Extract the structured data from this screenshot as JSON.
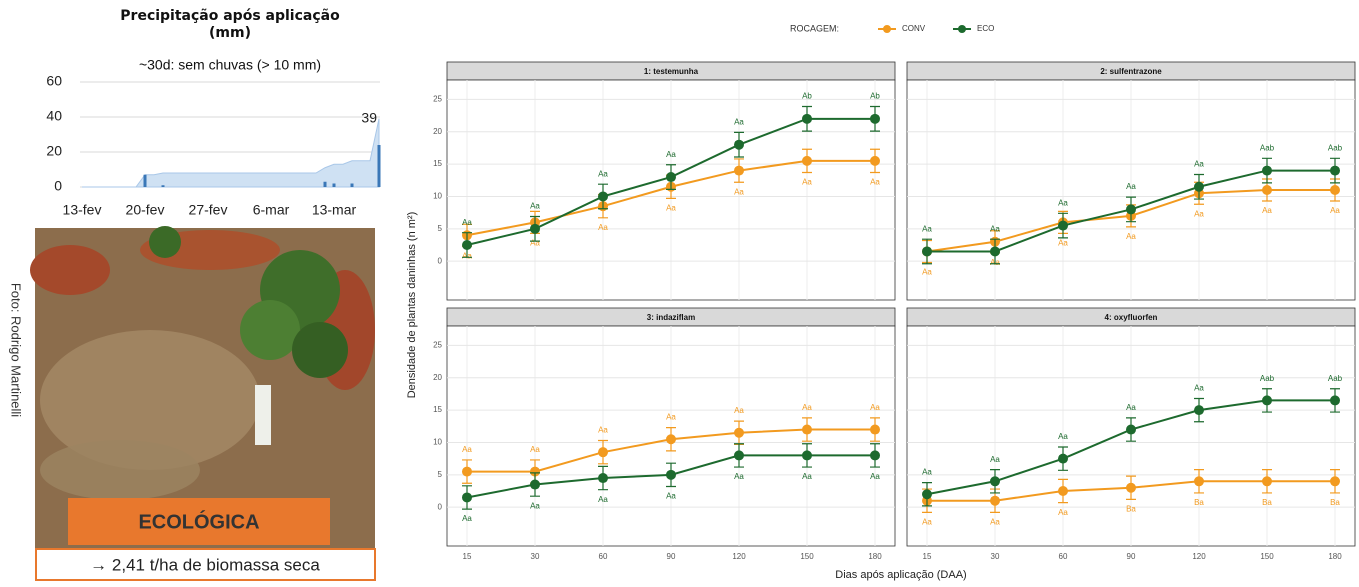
{
  "chart_data": [
    {
      "type": "area-bar",
      "title": "Precipitação após aplicação (mm)",
      "subtitle": "~30d: sem chuvas (> 10 mm)",
      "categories": [
        "13-fev",
        null,
        null,
        null,
        null,
        null,
        null,
        "20-fev",
        null,
        null,
        null,
        null,
        null,
        null,
        "27-fev",
        null,
        null,
        null,
        null,
        null,
        null,
        "6-mar",
        null,
        null,
        null,
        null,
        null,
        null,
        "13-mar",
        null,
        null,
        null,
        null,
        null
      ],
      "series": [
        {
          "kind": "area",
          "color": "#cfe1f3",
          "values": [
            0,
            0,
            0,
            0,
            0,
            0,
            0,
            7,
            7,
            8,
            8,
            8,
            8,
            8,
            8,
            8,
            8,
            8,
            8,
            8,
            8,
            8,
            8,
            8,
            8,
            8,
            8,
            11,
            13,
            13,
            15,
            15,
            15,
            39
          ]
        },
        {
          "kind": "bar",
          "color": "#3a77b7",
          "values": [
            0,
            0,
            0,
            0,
            0,
            0,
            0,
            7,
            0,
            1,
            0,
            0,
            0,
            0,
            0,
            0,
            0,
            0,
            0,
            0,
            0,
            0,
            0,
            0,
            0,
            0,
            0,
            3,
            2,
            0,
            2,
            0,
            0,
            24
          ]
        }
      ],
      "annotations": [
        {
          "text": "39"
        }
      ],
      "ylim": [
        0,
        60
      ],
      "yticks": [
        0,
        20,
        40,
        60
      ],
      "grid": true
    },
    {
      "type": "line",
      "legend_title": "ROCAGEM:",
      "x_label": "Dias após aplicação (DAA)",
      "y_label": "Densidade de plantas daninhas (n m²)",
      "categories": [
        "15",
        "30",
        "60",
        "90",
        "120",
        "150",
        "180"
      ],
      "ylim": [
        -6,
        28
      ],
      "yticks": [
        0,
        5,
        10,
        15,
        20,
        25
      ],
      "grid": true,
      "groups": [
        {
          "name": "CONV",
          "color": "#f29a1f"
        },
        {
          "name": "ECO",
          "color": "#1d6a2e"
        }
      ],
      "panels": [
        {
          "title": "1: testemunha",
          "series": [
            {
              "values": [
                4,
                6,
                8.5,
                11.5,
                14,
                15.5,
                15.5
              ],
              "errors": [
                1.7,
                1.7,
                1.8,
                1.8,
                1.8,
                1.8,
                1.8
              ],
              "letters": [
                "Aa",
                "Aa",
                "Aa",
                "Aa",
                "Aa",
                "Aa",
                "Aa"
              ],
              "letter_position": "below"
            },
            {
              "values": [
                2.5,
                5,
                10,
                13,
                18,
                22,
                22
              ],
              "errors": [
                1.9,
                1.9,
                1.9,
                1.9,
                1.9,
                1.9,
                1.9
              ],
              "letters": [
                "Aa",
                "Aa",
                "Aa",
                "Aa",
                "Aa",
                "Ab",
                "Ab"
              ],
              "letter_position": "above"
            }
          ]
        },
        {
          "title": "2: sulfentrazone",
          "series": [
            {
              "values": [
                1.5,
                3,
                6,
                7,
                10.5,
                11,
                11
              ],
              "errors": [
                1.7,
                1.7,
                1.7,
                1.7,
                1.7,
                1.7,
                1.7
              ],
              "letters": [
                "Aa",
                "Aa",
                "Aa",
                "Aa",
                "Aa",
                "Aa",
                "Aa"
              ],
              "letter_position": "below"
            },
            {
              "values": [
                1.5,
                1.5,
                5.5,
                8,
                11.5,
                14,
                14
              ],
              "errors": [
                1.9,
                1.9,
                1.9,
                1.9,
                1.9,
                1.9,
                1.9
              ],
              "letters": [
                "Aa",
                "Aa",
                "Aa",
                "Aa",
                "Aa",
                "Aab",
                "Aab"
              ],
              "letter_position": "above"
            }
          ]
        },
        {
          "title": "3: indaziflam",
          "series": [
            {
              "values": [
                5.5,
                5.5,
                8.5,
                10.5,
                11.5,
                12,
                12
              ],
              "errors": [
                1.8,
                1.8,
                1.8,
                1.8,
                1.8,
                1.8,
                1.8
              ],
              "letters": [
                "Aa",
                "Aa",
                "Aa",
                "Aa",
                "Aa",
                "Aa",
                "Aa"
              ],
              "letter_position": "above"
            },
            {
              "values": [
                1.5,
                3.5,
                4.5,
                5,
                8,
                8,
                8
              ],
              "errors": [
                1.8,
                1.8,
                1.8,
                1.8,
                1.8,
                1.8,
                1.8
              ],
              "letters": [
                "Aa",
                "Aa",
                "Aa",
                "Aa",
                "Aa",
                "Aa",
                "Aa"
              ],
              "letter_position": "below"
            }
          ]
        },
        {
          "title": "4: oxyfluorfen",
          "series": [
            {
              "values": [
                1,
                1,
                2.5,
                3,
                4,
                4,
                4
              ],
              "errors": [
                1.8,
                1.8,
                1.8,
                1.8,
                1.8,
                1.8,
                1.8
              ],
              "letters": [
                "Aa",
                "Aa",
                "Aa",
                "Ba",
                "Ba",
                "Ba",
                "Ba"
              ],
              "letter_position": "below"
            },
            {
              "values": [
                2,
                4,
                7.5,
                12,
                15,
                16.5,
                16.5
              ],
              "errors": [
                1.8,
                1.8,
                1.8,
                1.8,
                1.8,
                1.8,
                1.8
              ],
              "letters": [
                "Aa",
                "Aa",
                "Aa",
                "Aa",
                "Aa",
                "Aab",
                "Aab"
              ],
              "letter_position": "above"
            }
          ]
        }
      ]
    }
  ],
  "photo": {
    "credit": "Foto: Rodrigo Martinelli",
    "label": "ECOLÓGICA",
    "caption": "→ 2,41 t/ha de biomassa seca"
  }
}
